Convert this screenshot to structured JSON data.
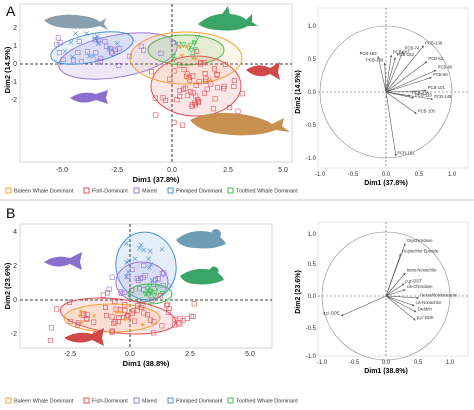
{
  "panels": [
    {
      "letter": "A",
      "pca_xlabel": "Dim1 (37.8%)",
      "pca_ylabel": "Dim2 (14.5%)",
      "pca_xticks": [
        "-5.0",
        "-2.5",
        "0.0",
        "2.5",
        "5.0"
      ],
      "pca_yticks": [
        "2",
        "1",
        "0",
        "-1",
        "-2"
      ],
      "circle_xlabel": "Dim1 (37.8%)",
      "circle_ylabel": "Dim2 (14.5%)",
      "circle_xticks": [
        "-1.0",
        "-0.5",
        "0.0",
        "0.5",
        "1.0"
      ],
      "circle_yticks": [
        "1.0",
        "0.5",
        "0.0",
        "-0.5",
        "-1.0"
      ],
      "legend": [
        "Baleen Whale Dominant",
        "Fish-Dominant",
        "Mixed",
        "Pinniped Dominant",
        "Toothed Whale Dominant"
      ],
      "vectors": [
        {
          "label": "PCB-74",
          "dx": 0.26,
          "dy": 0.62
        },
        {
          "label": "PCB-138",
          "dx": 0.57,
          "dy": 0.7
        },
        {
          "label": "PCB-187",
          "dx": 0.08,
          "dy": 0.56
        },
        {
          "label": "PCB-153",
          "dx": 0.14,
          "dy": 0.52
        },
        {
          "label": "PCB-180",
          "dx": -0.02,
          "dy": 0.44
        },
        {
          "label": "PCB-183",
          "dx": -0.12,
          "dy": 0.54
        },
        {
          "label": "PCB-52",
          "dx": 0.62,
          "dy": 0.46
        },
        {
          "label": "PCB-66",
          "dx": 0.69,
          "dy": 0.22
        },
        {
          "label": "PCB-99",
          "dx": 0.76,
          "dy": 0.33
        },
        {
          "label": "PCB-118",
          "dx": 0.37,
          "dy": -0.06
        },
        {
          "label": "PCB-149",
          "dx": 0.71,
          "dy": -0.11
        },
        {
          "label": "PCB-101",
          "dx": 0.61,
          "dy": 0.02
        },
        {
          "label": "PCB-105",
          "dx": 0.46,
          "dy": -0.33
        },
        {
          "label": "PCB-110",
          "dx": 0.42,
          "dy": -0.09
        },
        {
          "label": "PCB-151",
          "dx": 0.15,
          "dy": -0.97
        }
      ]
    },
    {
      "letter": "B",
      "pca_xlabel": "Dim1 (38.8%)",
      "pca_ylabel": "Dim2 (23.6%)",
      "pca_xticks": [
        "-2.5",
        "0.0",
        "2.5",
        "5.0"
      ],
      "pca_yticks": [
        "4",
        "2",
        "0",
        "-2"
      ],
      "circle_xlabel": "Dim1 (38.8%)",
      "circle_ylabel": "Dim2 (23.6%)",
      "circle_xticks": [
        "-1.0",
        "-0.5",
        "0.0",
        "0.5",
        "1.0"
      ],
      "circle_yticks": [
        "1.0",
        "0.5",
        "0.0",
        "-0.5",
        "-1.0"
      ],
      "legend": [
        "Baleen Whale Dominant",
        "Fish-Dominant",
        "Mixed",
        "Pinniped Dominant",
        "Toothed Whale Dominant"
      ],
      "vectors": [
        {
          "label": "Oxychlordane",
          "dx": 0.3,
          "dy": 0.82
        },
        {
          "label": "Heptachlor Epoxide",
          "dx": 0.23,
          "dy": 0.66
        },
        {
          "label": "trans-Nonachlor",
          "dx": 0.3,
          "dy": 0.36
        },
        {
          "label": "p,p'-DDT",
          "dx": 0.28,
          "dy": 0.19
        },
        {
          "label": "cis-Chlordane",
          "dx": 0.3,
          "dy": 0.1
        },
        {
          "label": "Hexachlorobenzene",
          "dx": 0.51,
          "dy": -0.03
        },
        {
          "label": "cis-Nonachlor",
          "dx": 0.44,
          "dy": -0.15
        },
        {
          "label": "Dieldrin",
          "dx": 0.47,
          "dy": -0.25
        },
        {
          "label": "p,p'-DDE",
          "dx": 0.46,
          "dy": -0.38
        },
        {
          "label": "o,p'-DDE",
          "dx": -0.7,
          "dy": -0.31
        }
      ]
    }
  ],
  "colors": {
    "baleen": "#f2a33a",
    "fish": "#e0505a",
    "mixed": "#9a78d6",
    "pinniped": "#4a8fd9",
    "toothed": "#3fba52",
    "arrow": "#555555"
  },
  "icons": [
    "grey-whale-icon",
    "green-dolphin-icon",
    "red-fish-icon",
    "purple-fish-icon",
    "brown-baleen-whale-icon",
    "blue-seal-icon",
    "green-seal-icon",
    "red-fish-icon",
    "purple-fish-icon"
  ]
}
